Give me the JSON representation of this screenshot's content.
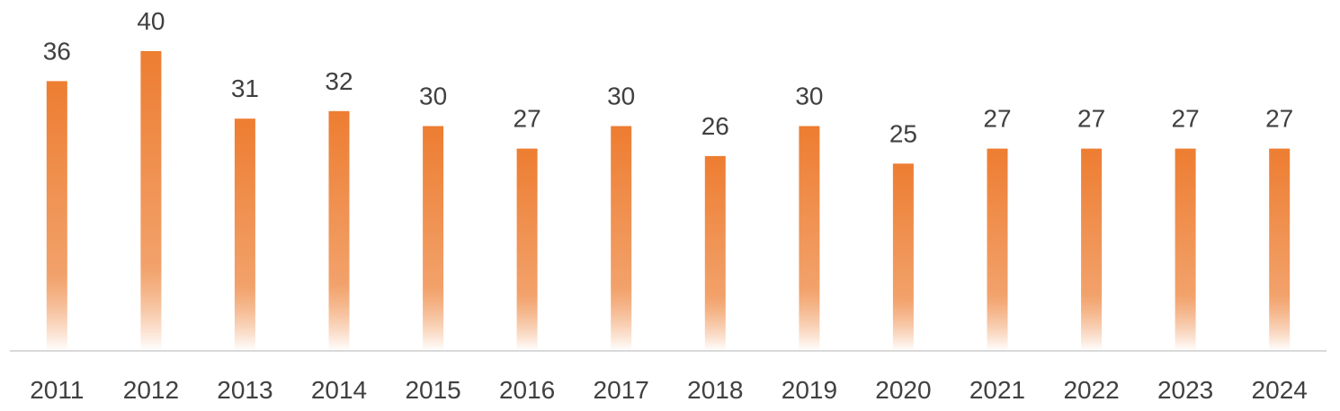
{
  "chart_data": {
    "type": "bar",
    "categories": [
      "2011",
      "2012",
      "2013",
      "2014",
      "2015",
      "2016",
      "2017",
      "2018",
      "2019",
      "2020",
      "2021",
      "2022",
      "2023",
      "2024"
    ],
    "values": [
      36,
      40,
      31,
      32,
      30,
      27,
      30,
      26,
      30,
      25,
      27,
      27,
      27,
      27
    ],
    "title": "",
    "xlabel": "",
    "ylabel": "",
    "ylim": [
      0,
      40
    ],
    "grid": false,
    "legend": "none",
    "data_labels": true,
    "colors": {
      "bar_top": "#ED7D31",
      "bar_bottom": "#ffffff",
      "axis": "#D9D9D9",
      "text": "#404040"
    }
  }
}
